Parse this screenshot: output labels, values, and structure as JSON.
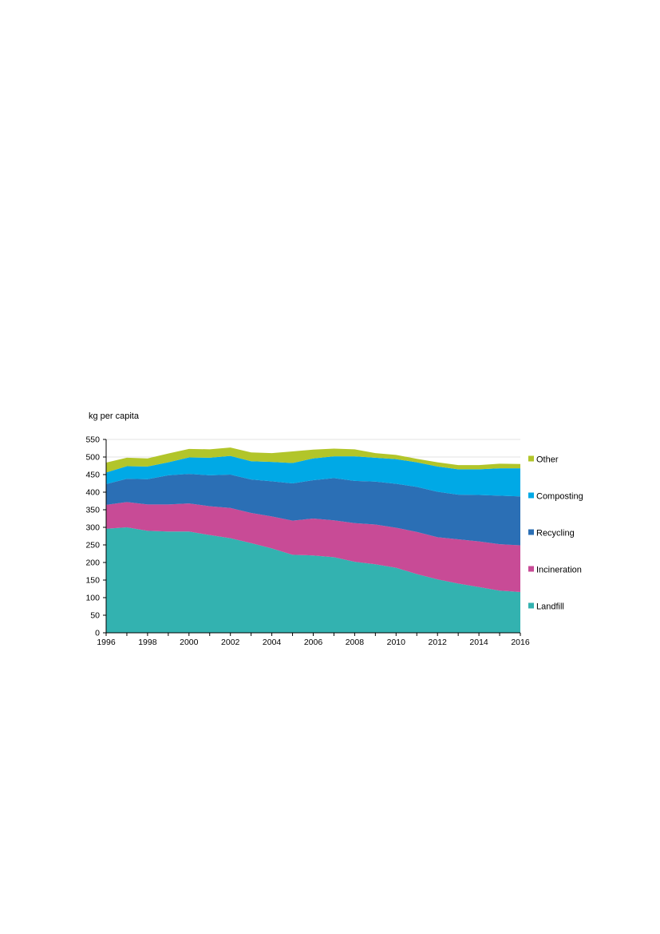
{
  "chart_data": {
    "type": "area",
    "stacked": true,
    "ylabel": "kg per capita",
    "ylim": [
      0,
      550
    ],
    "yticks": [
      0,
      50,
      100,
      150,
      200,
      250,
      300,
      350,
      400,
      450,
      500,
      550
    ],
    "xlim": [
      1996,
      2016
    ],
    "xticks": [
      1996,
      1998,
      2000,
      2002,
      2004,
      2006,
      2008,
      2010,
      2012,
      2014,
      2016
    ],
    "grid": true,
    "legend_position": "right",
    "x": [
      1996,
      1997,
      1998,
      1999,
      2000,
      2001,
      2002,
      2003,
      2004,
      2005,
      2006,
      2007,
      2008,
      2009,
      2010,
      2011,
      2012,
      2013,
      2014,
      2015,
      2016
    ],
    "series": [
      {
        "name": "Landfill",
        "color": "#33b2b0",
        "values": [
          296,
          300,
          290,
          288,
          288,
          278,
          269,
          255,
          240,
          222,
          220,
          215,
          202,
          195,
          185,
          167,
          152,
          140,
          130,
          120,
          116
        ]
      },
      {
        "name": "Incineration",
        "color": "#c84b96",
        "values": [
          68,
          72,
          75,
          77,
          80,
          82,
          86,
          86,
          91,
          97,
          105,
          105,
          110,
          113,
          114,
          120,
          120,
          126,
          130,
          132,
          133
        ]
      },
      {
        "name": "Recycling",
        "color": "#2b6fb5",
        "values": [
          59,
          66,
          72,
          83,
          84,
          88,
          95,
          95,
          100,
          106,
          109,
          120,
          120,
          122,
          125,
          128,
          129,
          127,
          132,
          138,
          139
        ]
      },
      {
        "name": "Composting",
        "color": "#00a9e6",
        "values": [
          33,
          36,
          36,
          37,
          47,
          50,
          53,
          52,
          55,
          58,
          62,
          62,
          70,
          68,
          70,
          70,
          72,
          72,
          73,
          78,
          80
        ]
      },
      {
        "name": "Other",
        "color": "#b2c52a",
        "values": [
          28,
          24,
          23,
          25,
          24,
          24,
          24,
          25,
          25,
          33,
          25,
          22,
          20,
          13,
          12,
          10,
          12,
          12,
          12,
          13,
          12
        ]
      }
    ]
  }
}
